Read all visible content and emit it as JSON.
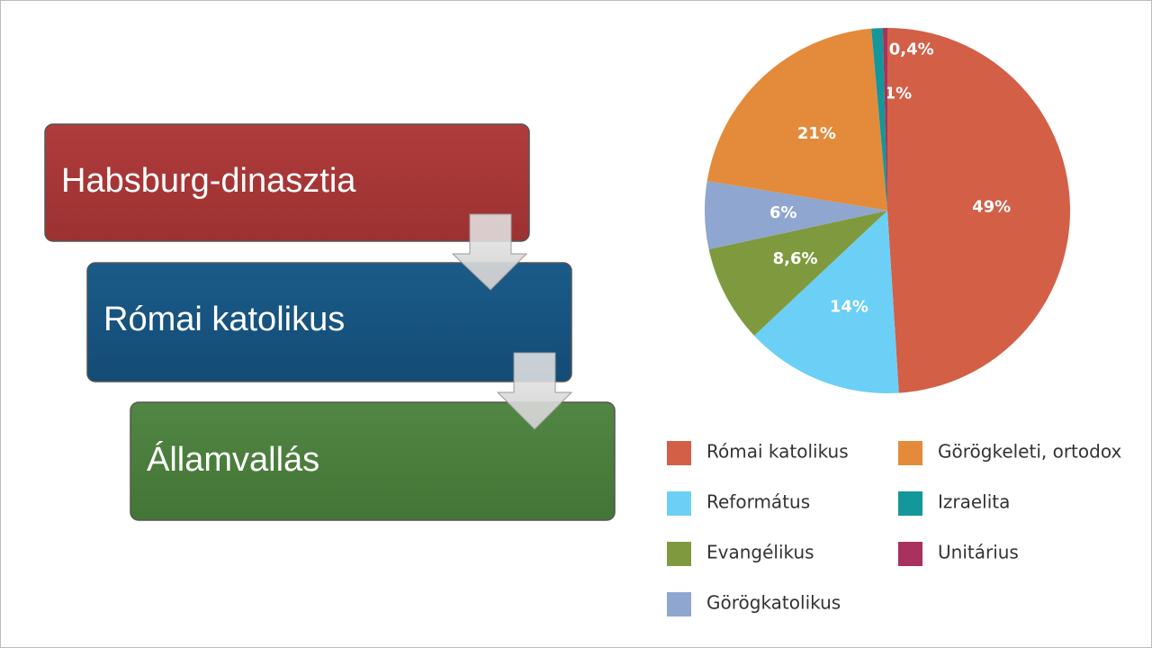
{
  "diagram": {
    "boxes": [
      {
        "label": "Habsburg-dinasztia"
      },
      {
        "label": "Római katolikus"
      },
      {
        "label": "Államvallás"
      }
    ]
  },
  "chart_data": {
    "type": "pie",
    "series": [
      {
        "name": "Római katolikus",
        "color": "#d35f47",
        "value": 49,
        "value_label": "49%"
      },
      {
        "name": "Református",
        "color": "#6ccff6",
        "value": 14,
        "value_label": "14%"
      },
      {
        "name": "Evangélikus",
        "color": "#7f9a3e",
        "value": 8.6,
        "value_label": "8,6%"
      },
      {
        "name": "Görögkatolikus",
        "color": "#8fa6d0",
        "value": 6,
        "value_label": "6%"
      },
      {
        "name": "Görögkeleti, ortodox",
        "color": "#e38b3a",
        "value": 21,
        "value_label": "21%"
      },
      {
        "name": "Izraelita",
        "color": "#13979a",
        "value": 1,
        "value_label": "1%"
      },
      {
        "name": "Unitárius",
        "color": "#a8325d",
        "value": 0.4,
        "value_label": "0,4%"
      }
    ]
  }
}
